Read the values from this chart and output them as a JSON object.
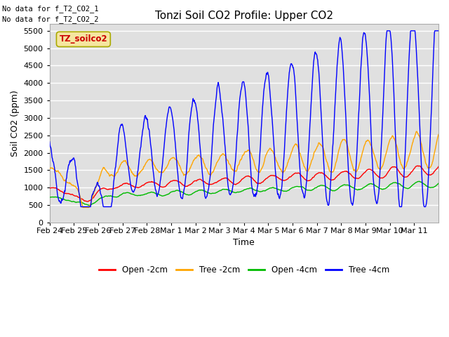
{
  "title": "Tonzi Soil CO2 Profile: Upper CO2",
  "xlabel": "Time",
  "ylabel": "Soil CO2 (ppm)",
  "ylim": [
    0,
    5700
  ],
  "yticks": [
    0,
    500,
    1000,
    1500,
    2000,
    2500,
    3000,
    3500,
    4000,
    4500,
    5000,
    5500
  ],
  "no_data_text": [
    "No data for f_T2_CO2_1",
    "No data for f_T2_CO2_2"
  ],
  "legend_label": "TZ_soilco2",
  "legend_box_facecolor": "#f5e6a0",
  "legend_box_edgecolor": "#aaaa00",
  "legend_text_color": "#cc0000",
  "series_labels": [
    "Open -2cm",
    "Tree -2cm",
    "Open -4cm",
    "Tree -4cm"
  ],
  "series_colors": [
    "#ff0000",
    "#ffa500",
    "#00bb00",
    "#0000ff"
  ],
  "background_color": "#ffffff",
  "plot_bg_color": "#e0e0e0",
  "grid_color": "#ffffff",
  "n_points": 960,
  "xtick_labels": [
    "Feb 24",
    "Feb 25",
    "Feb 26",
    "Feb 27",
    "Feb 28",
    "Mar 1",
    "Mar 2",
    "Mar 3",
    "Mar 4",
    "Mar 5",
    "Mar 6",
    "Mar 7",
    "Mar 8",
    "Mar 9",
    "Mar 10",
    "Mar 11"
  ]
}
